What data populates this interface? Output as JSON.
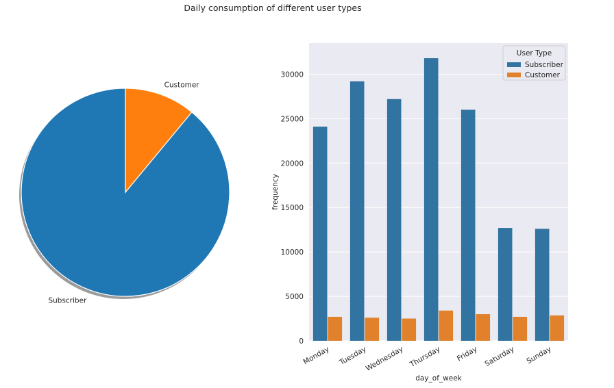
{
  "title": "Daily consumption of different user types",
  "chart_data": [
    {
      "type": "pie",
      "labels": [
        "Subscriber",
        "Customer"
      ],
      "values": [
        89,
        11
      ],
      "colors": [
        "#1f77b4",
        "#ff7f0e"
      ],
      "start_angle_deg": 90,
      "shadow": true
    },
    {
      "type": "bar",
      "categories": [
        "Monday",
        "Tuesday",
        "Wednesday",
        "Thursday",
        "Friday",
        "Saturday",
        "Sunday"
      ],
      "series": [
        {
          "name": "Subscriber",
          "values": [
            24100,
            29200,
            27200,
            31800,
            26000,
            12700,
            12600
          ],
          "color": "#3274a1"
        },
        {
          "name": "Customer",
          "values": [
            2700,
            2600,
            2500,
            3400,
            3000,
            2700,
            2850
          ],
          "color": "#e1812c"
        }
      ],
      "xlabel": "day_of_week",
      "ylabel": "frequency",
      "ylim": [
        0,
        33500
      ],
      "yticks": [
        0,
        5000,
        10000,
        15000,
        20000,
        25000,
        30000
      ],
      "legend_title": "User Type",
      "legend_position": "top-right",
      "grid": true,
      "background": "#eaeaf2"
    }
  ]
}
